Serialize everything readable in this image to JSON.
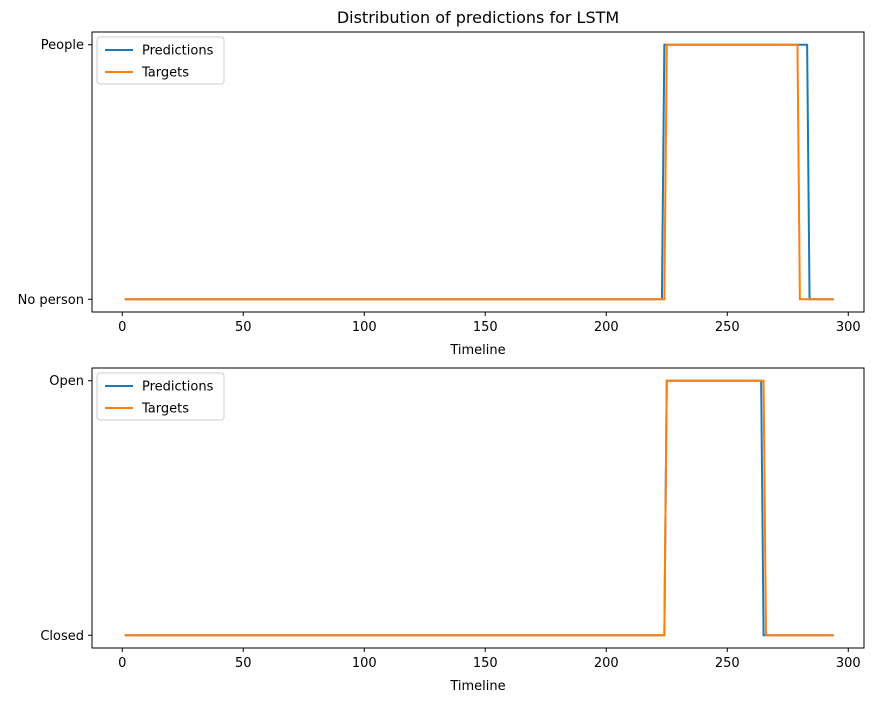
{
  "chart_data": [
    {
      "type": "line",
      "title": "Distribution of predictions for LSTM",
      "xlabel": "Timeline",
      "ylabel": "",
      "xlim": [
        -12.5,
        306.5
      ],
      "ylim": [
        -0.05,
        1.05
      ],
      "xticks": [
        0,
        50,
        100,
        150,
        200,
        250,
        300
      ],
      "xtick_labels": [
        "0",
        "50",
        "100",
        "150",
        "200",
        "250",
        "300"
      ],
      "yticks": [
        0,
        1
      ],
      "ytick_labels": [
        "No person",
        "People"
      ],
      "legend_position": "upper-left",
      "series": [
        {
          "name": "Predictions",
          "color": "#1f77b4",
          "x": [
            1,
            223,
            224,
            283,
            284,
            294
          ],
          "y": [
            0,
            0,
            1,
            1,
            0,
            0
          ]
        },
        {
          "name": "Targets",
          "color": "#ff7f0e",
          "x": [
            1,
            224,
            225,
            279,
            280,
            294
          ],
          "y": [
            0,
            0,
            1,
            1,
            0,
            0
          ]
        }
      ]
    },
    {
      "type": "line",
      "title": "",
      "xlabel": "Timeline",
      "ylabel": "",
      "xlim": [
        -12.5,
        306.5
      ],
      "ylim": [
        -0.05,
        1.05
      ],
      "xticks": [
        0,
        50,
        100,
        150,
        200,
        250,
        300
      ],
      "xtick_labels": [
        "0",
        "50",
        "100",
        "150",
        "200",
        "250",
        "300"
      ],
      "yticks": [
        0,
        1
      ],
      "ytick_labels": [
        "Closed",
        "Open"
      ],
      "legend_position": "upper-left",
      "series": [
        {
          "name": "Predictions",
          "color": "#1f77b4",
          "x": [
            1,
            224,
            225,
            264,
            265,
            294
          ],
          "y": [
            0,
            0,
            1,
            1,
            0,
            0
          ]
        },
        {
          "name": "Targets",
          "color": "#ff7f0e",
          "x": [
            1,
            224,
            225,
            265,
            266,
            294
          ],
          "y": [
            0,
            0,
            1,
            1,
            0,
            0
          ]
        }
      ]
    }
  ]
}
